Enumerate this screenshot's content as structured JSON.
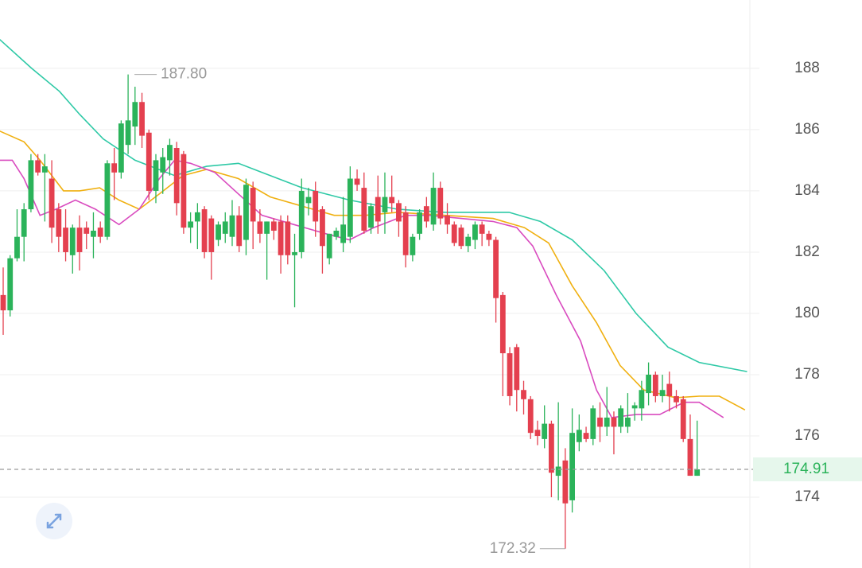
{
  "chart_data": {
    "type": "candlestick",
    "up_color": "#2bb35a",
    "down_color": "#e4404f",
    "xlim": [
      -0.46,
      107.6
    ],
    "ylim": [
      171.69,
      190.23
    ],
    "yticks": [
      174,
      176,
      178,
      180,
      182,
      184,
      186,
      188
    ],
    "grid": true,
    "open": [
      180.6,
      180.1,
      181.8,
      182.5,
      183.4,
      185.0,
      184.6,
      184.4,
      183.4,
      182.8,
      181.9,
      182.8,
      182.8,
      182.5,
      182.8,
      182.5,
      184.9,
      184.6,
      185.5,
      186.1,
      186.9,
      185.9,
      184.0,
      184.6,
      185.0,
      185.4,
      185.2,
      182.8,
      183.0,
      183.4,
      183.1,
      182.4,
      182.6,
      182.5,
      183.2,
      182.4,
      184.1,
      183.0,
      182.6,
      183.0,
      183.0,
      183.0,
      181.9,
      182.0,
      183.6,
      184.0,
      183.4,
      181.8,
      182.5,
      182.3,
      182.5,
      184.4,
      184.1,
      182.8,
      183.8,
      183.3,
      183.8,
      183.6,
      183.3,
      181.9,
      182.6,
      183.5,
      182.9,
      184.1,
      183.2,
      182.9,
      182.8,
      182.2,
      182.4,
      182.9,
      182.6,
      182.4,
      180.6,
      178.7,
      178.9,
      177.5,
      177.2,
      176.2,
      175.9,
      176.4,
      174.7,
      175.2,
      173.9,
      175.8,
      176.1,
      175.9,
      176.6,
      176.3,
      176.6,
      176.3,
      176.3,
      176.9,
      176.9,
      177.4,
      178.0,
      177.3,
      177.7,
      177.3,
      177.2,
      175.9,
      174.7
    ],
    "high": [
      181.5,
      181.9,
      183.4,
      183.6,
      185.2,
      185.2,
      185.2,
      185.0,
      183.6,
      183.4,
      182.9,
      183.2,
      183.0,
      183.3,
      183.0,
      185.0,
      185.4,
      186.3,
      187.8,
      187.4,
      187.2,
      186.0,
      185.2,
      185.4,
      185.7,
      185.6,
      185.3,
      183.3,
      183.6,
      183.5,
      183.2,
      183.0,
      183.3,
      183.7,
      183.5,
      184.4,
      184.3,
      183.4,
      183.0,
      183.1,
      183.2,
      183.2,
      182.6,
      184.4,
      184.1,
      184.3,
      183.5,
      182.6,
      182.8,
      183.8,
      184.8,
      184.7,
      184.6,
      183.6,
      184.5,
      184.6,
      184.5,
      183.7,
      183.5,
      182.6,
      183.4,
      183.8,
      184.6,
      184.3,
      183.6,
      183.0,
      182.9,
      182.6,
      183.0,
      183.0,
      182.7,
      182.5,
      180.7,
      178.9,
      179.0,
      177.8,
      177.3,
      176.5,
      177.0,
      176.5,
      177.1,
      175.6,
      176.9,
      176.7,
      176.3,
      177.0,
      177.1,
      177.6,
      176.8,
      177.0,
      177.4,
      177.1,
      177.8,
      178.4,
      178.1,
      178.0,
      178.1,
      177.5,
      177.3,
      176.7,
      176.5
    ],
    "low": [
      179.3,
      179.9,
      181.7,
      181.7,
      183.3,
      184.5,
      183.0,
      182.3,
      182.0,
      181.7,
      181.3,
      181.4,
      182.1,
      181.8,
      182.3,
      182.4,
      183.7,
      184.4,
      185.2,
      185.5,
      185.4,
      183.7,
      183.6,
      183.9,
      184.5,
      183.2,
      182.6,
      182.3,
      182.1,
      181.8,
      181.1,
      182.2,
      182.3,
      182.2,
      182.0,
      181.9,
      182.1,
      182.3,
      181.1,
      182.4,
      181.3,
      181.6,
      180.2,
      181.8,
      183.2,
      182.5,
      181.3,
      181.6,
      182.4,
      182.0,
      182.3,
      184.0,
      182.6,
      182.6,
      182.6,
      182.6,
      183.3,
      182.5,
      181.5,
      181.7,
      182.4,
      182.8,
      182.7,
      182.9,
      182.6,
      182.2,
      182.1,
      182.0,
      182.1,
      182.2,
      182.2,
      179.7,
      177.3,
      177.0,
      176.8,
      176.7,
      175.9,
      175.7,
      175.6,
      174.0,
      173.9,
      172.32,
      173.5,
      175.5,
      175.8,
      175.7,
      175.8,
      176.0,
      175.4,
      176.1,
      176.1,
      176.5,
      176.5,
      177.0,
      177.1,
      177.1,
      176.8,
      176.9,
      175.8,
      174.7,
      174.7
    ],
    "close": [
      180.1,
      181.8,
      182.5,
      183.4,
      185.0,
      184.6,
      184.8,
      182.8,
      182.5,
      182.0,
      182.8,
      182.0,
      182.6,
      182.7,
      182.5,
      184.9,
      184.6,
      186.2,
      186.3,
      186.9,
      185.8,
      184.0,
      185.0,
      185.1,
      185.5,
      183.6,
      182.8,
      183.0,
      183.3,
      182.0,
      182.0,
      182.9,
      183.0,
      183.2,
      182.2,
      184.2,
      183.0,
      182.6,
      183.0,
      182.7,
      181.9,
      181.9,
      182.0,
      184.0,
      183.8,
      183.0,
      182.2,
      182.6,
      182.7,
      182.9,
      184.4,
      184.2,
      182.7,
      183.5,
      183.0,
      183.8,
      183.6,
      183.0,
      181.9,
      182.5,
      183.3,
      183.0,
      184.1,
      183.1,
      182.9,
      182.3,
      182.2,
      182.5,
      182.9,
      182.6,
      182.4,
      180.5,
      178.7,
      177.3,
      177.5,
      177.2,
      176.1,
      176.0,
      176.4,
      174.8,
      175.0,
      173.8,
      176.1,
      176.2,
      175.9,
      176.9,
      176.3,
      176.6,
      176.3,
      176.9,
      176.6,
      177.0,
      177.5,
      178.0,
      177.3,
      177.5,
      177.3,
      177.1,
      175.9,
      174.7,
      174.91
    ],
    "ma_lines": [
      {
        "color": "#2ec9a6",
        "x": [
          -0.5,
          4.1,
          8.1,
          11.0,
          14.4,
          19.0,
          24.7,
          29.3,
          33.9,
          37.3,
          43.1,
          49.9,
          56.8,
          63.7,
          72.9,
          77.4,
          82.0,
          86.6,
          91.2,
          95.8,
          100.3,
          107.2
        ],
        "values": [
          188.94,
          188.0,
          187.25,
          186.5,
          185.7,
          185.0,
          184.5,
          184.8,
          184.9,
          184.6,
          184.1,
          183.7,
          183.4,
          183.3,
          183.3,
          183.0,
          182.4,
          181.4,
          180.0,
          178.9,
          178.4,
          178.1
        ]
      },
      {
        "color": "#f0b010",
        "x": [
          -0.5,
          3.0,
          5.3,
          8.7,
          11.0,
          13.9,
          16.7,
          19.6,
          22.5,
          25.9,
          29.3,
          33.9,
          38.5,
          43.1,
          47.7,
          52.2,
          56.8,
          63.7,
          70.6,
          75.1,
          78.6,
          82.0,
          85.5,
          88.9,
          92.3,
          96.9,
          100.3,
          103.2,
          106.9
        ],
        "values": [
          185.95,
          185.6,
          185.0,
          184.0,
          184.0,
          184.1,
          183.7,
          183.4,
          183.9,
          184.5,
          184.7,
          184.4,
          183.8,
          183.5,
          183.2,
          183.2,
          183.3,
          183.2,
          183.1,
          182.8,
          182.3,
          180.9,
          179.7,
          178.3,
          177.5,
          177.25,
          177.3,
          177.3,
          176.85
        ]
      },
      {
        "color": "#d94bbf",
        "x": [
          -0.5,
          1.3,
          3.0,
          5.3,
          7.6,
          10.4,
          13.3,
          16.7,
          19.6,
          22.5,
          24.7,
          27.0,
          30.5,
          33.9,
          37.3,
          41.9,
          46.5,
          49.9,
          53.4,
          58.0,
          61.4,
          66.0,
          70.6,
          74.0,
          76.3,
          79.7,
          83.2,
          85.5,
          87.7,
          91.2,
          94.6,
          98.1,
          100.3,
          103.8
        ],
        "values": [
          185.0,
          185.0,
          184.4,
          183.2,
          183.4,
          183.7,
          183.4,
          182.9,
          183.4,
          184.4,
          185.0,
          184.9,
          184.6,
          183.9,
          183.2,
          182.9,
          182.6,
          182.4,
          182.8,
          183.2,
          183.2,
          183.1,
          183.0,
          182.8,
          182.2,
          180.6,
          179.1,
          177.5,
          176.6,
          176.7,
          176.7,
          177.1,
          177.1,
          176.6
        ]
      }
    ],
    "annotations": [
      {
        "label": "187.80",
        "value": 187.8,
        "index": 18
      },
      {
        "label": "172.32",
        "value": 172.32,
        "index": 81
      }
    ],
    "last_price": 174.91
  }
}
